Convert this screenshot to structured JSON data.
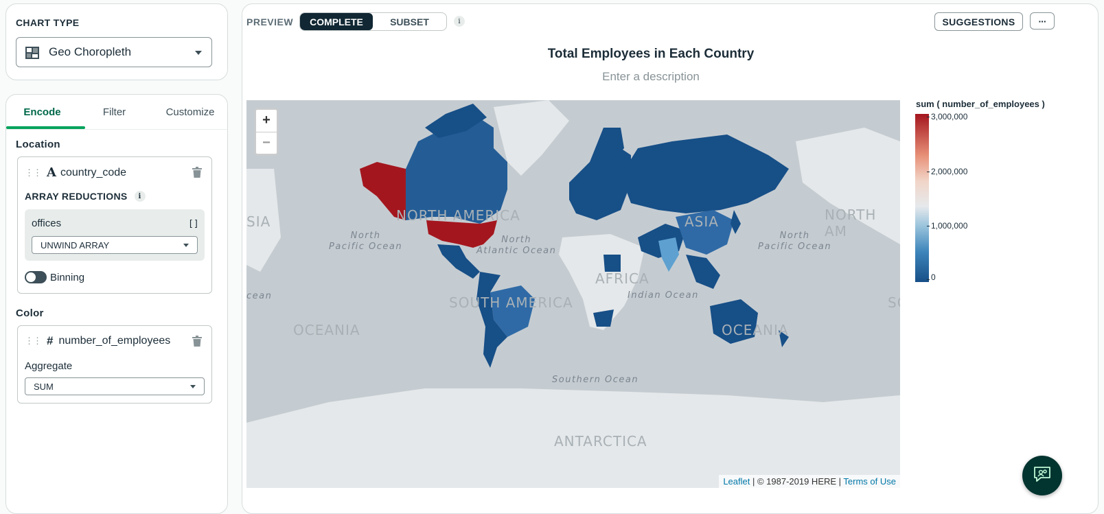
{
  "chart_type": {
    "label": "CHART TYPE",
    "selected": "Geo Choropleth",
    "icon": "geo-map-icon"
  },
  "encode_tabs": [
    {
      "label": "Encode",
      "active": true
    },
    {
      "label": "Filter",
      "active": false
    },
    {
      "label": "Customize",
      "active": false
    }
  ],
  "location": {
    "title": "Location",
    "field_type_icon": "A",
    "field_name": "country_code",
    "array_reductions_label": "ARRAY REDUCTIONS",
    "reduction_field": "offices",
    "reduction_field_icon": "[]",
    "reduction_value": "UNWIND ARRAY",
    "binning_label": "Binning",
    "binning_on": false
  },
  "color": {
    "title": "Color",
    "field_type_icon": "#",
    "field_name": "number_of_employees",
    "aggregate_label": "Aggregate",
    "aggregate_value": "SUM"
  },
  "preview": {
    "label": "PREVIEW",
    "options": [
      "COMPLETE",
      "SUBSET"
    ],
    "selected": "COMPLETE",
    "info_icon": "i"
  },
  "header_buttons": {
    "suggestions": "SUGGESTIONS",
    "more": "···"
  },
  "chart": {
    "title": "Total Employees in Each Country",
    "description_placeholder": "Enter a description"
  },
  "map": {
    "zoom_in": "+",
    "zoom_out": "−",
    "ocean_labels": [
      {
        "line1": "North",
        "line2": "Pacific Ocean"
      },
      {
        "line1": "North",
        "line2": "Atlantic Ocean"
      },
      {
        "line1": "North",
        "line2": "Pacific Ocean"
      },
      {
        "line1": "Indian Ocean",
        "line2": ""
      },
      {
        "line1": "Southern Ocean",
        "line2": ""
      }
    ],
    "continent_labels": [
      "NORTH AMERICA",
      "SOUTH AMERICA",
      "AFRICA",
      "ASIA",
      "OCEANIA",
      "OCEANIA",
      "ANTARCTICA",
      "NORTH AM",
      "SIA",
      "SOU",
      "cean"
    ],
    "attribution": {
      "leaflet": "Leaflet",
      "separator1": " | © 1987-2019 HERE | ",
      "terms": "Terms of Use"
    }
  },
  "legend": {
    "title": "sum ( number_of_employees )",
    "ticks": [
      "3,000,000",
      "2,000,000",
      "1,000,000",
      "0"
    ]
  },
  "chart_data": {
    "type": "choropleth",
    "title": "Total Employees in Each Country",
    "metric": "sum ( number_of_employees )",
    "color_scale": {
      "min": 0,
      "max": 3000000,
      "ticks": [
        0,
        1000000,
        2000000,
        3000000
      ],
      "low_color": "#174f87",
      "mid_color": "#e6e9ec",
      "high_color": "#a4161e"
    }
  },
  "colors": {
    "accent_green": "#00a35c",
    "dark_navy": "#112733",
    "high": "#a4161e",
    "low": "#174f87"
  }
}
